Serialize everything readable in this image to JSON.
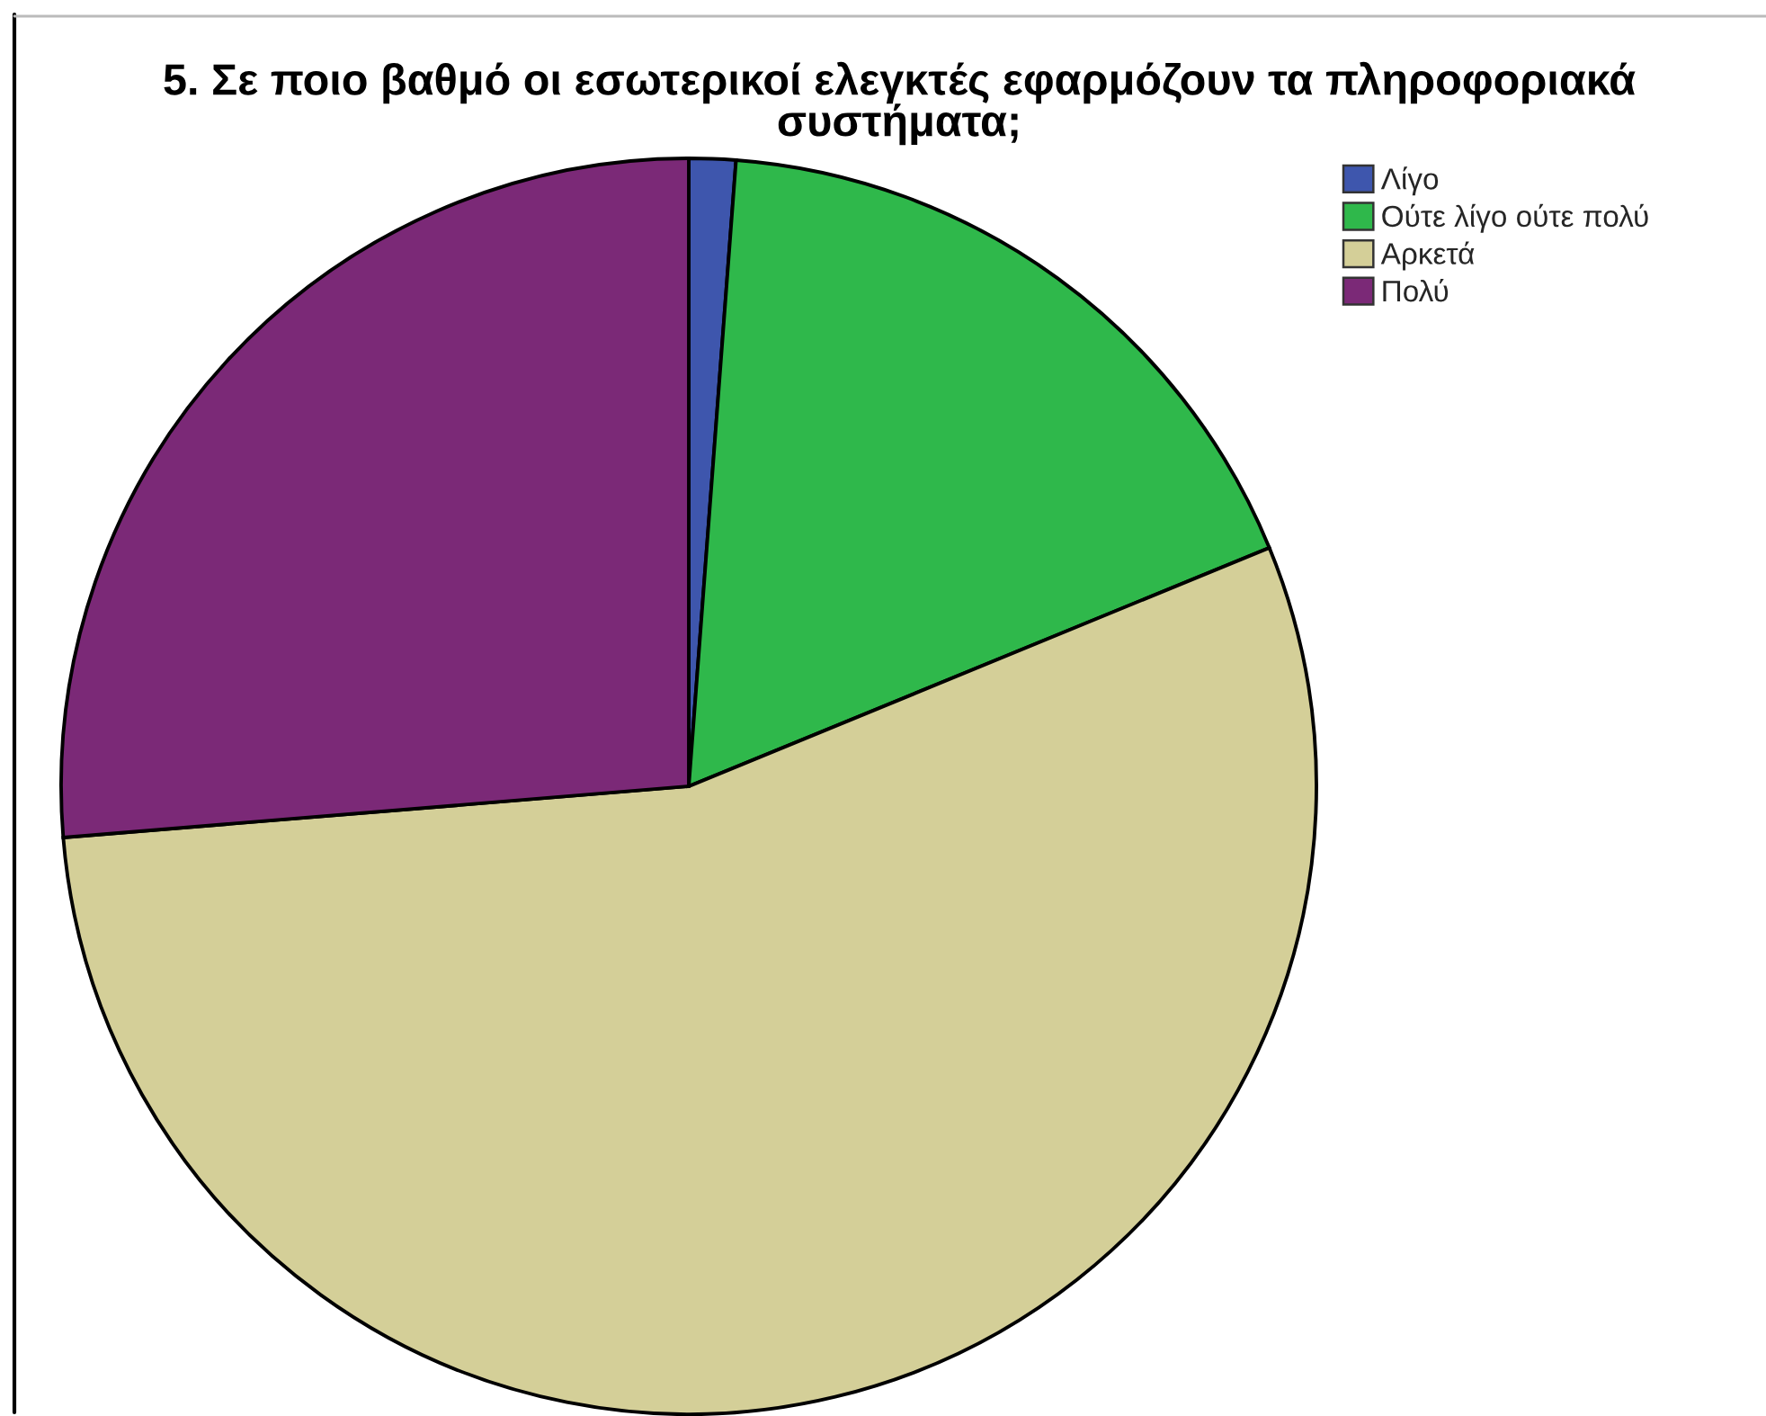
{
  "chart_data": {
    "type": "pie",
    "title": "5. Σε ποιο βαθμό οι εσωτερικοί ελεγκτές εφαρμόζουν τα πληροφοριακά\nσυστήματα;",
    "categories": [
      "Λίγο",
      "Ούτε λίγο ούτε πολύ",
      "Αρκετά",
      "Πολύ"
    ],
    "values": [
      1.2,
      17.6,
      54.9,
      26.3
    ],
    "colors": [
      "#3e56ad",
      "#2fb84b",
      "#d4cf98",
      "#7b2977"
    ],
    "legend": "top right"
  }
}
